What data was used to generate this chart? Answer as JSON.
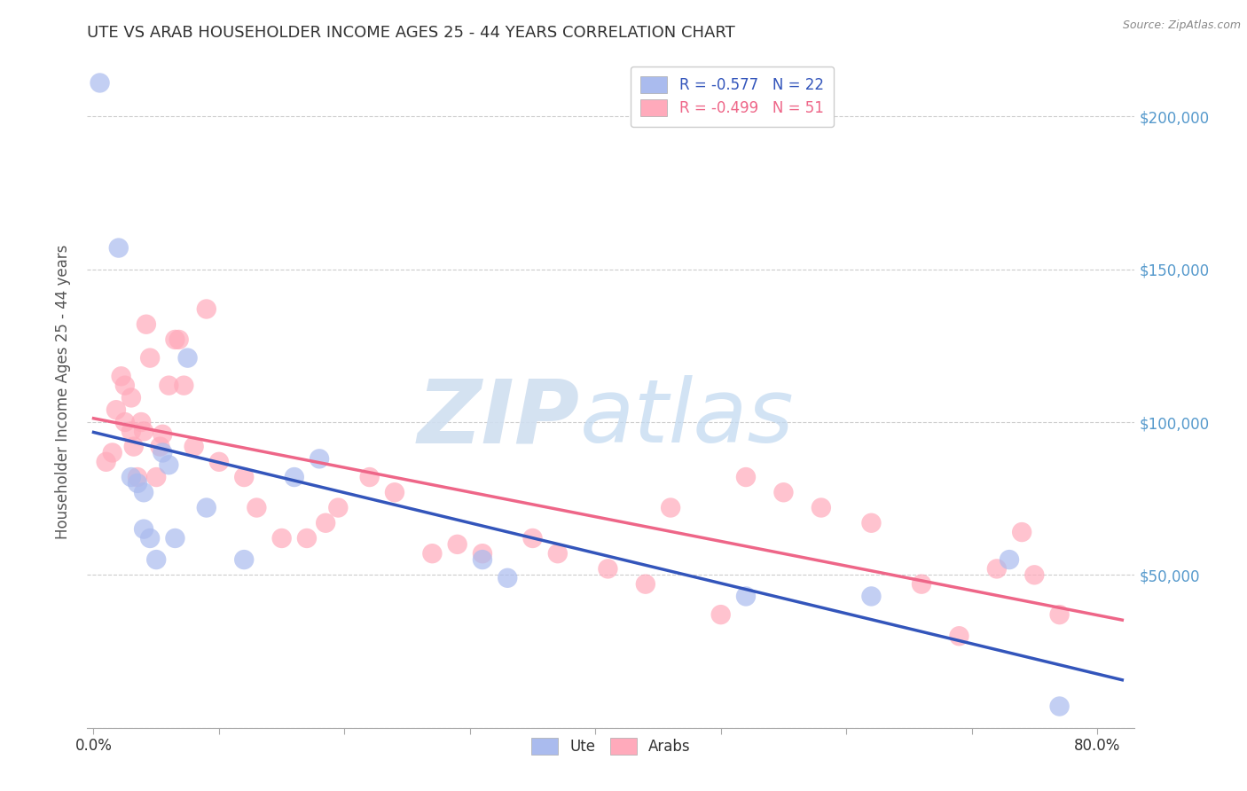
{
  "title": "UTE VS ARAB HOUSEHOLDER INCOME AGES 25 - 44 YEARS CORRELATION CHART",
  "source": "Source: ZipAtlas.com",
  "ylabel": "Householder Income Ages 25 - 44 years",
  "ylim": [
    0,
    220000
  ],
  "xlim": [
    -0.005,
    0.83
  ],
  "yticks": [
    0,
    50000,
    100000,
    150000,
    200000
  ],
  "ytick_labels": [
    "",
    "$50,000",
    "$100,000",
    "$150,000",
    "$200,000"
  ],
  "xtick_show": [
    0.0,
    0.8
  ],
  "xtick_show_labels": [
    "0.0%",
    "80.0%"
  ],
  "xtick_minor": [
    0.0,
    0.1,
    0.2,
    0.3,
    0.4,
    0.5,
    0.6,
    0.7,
    0.8
  ],
  "watermark_zip": "ZIP",
  "watermark_atlas": "atlas",
  "legend_blue_label": "R = -0.577   N = 22",
  "legend_pink_label": "R = -0.499   N = 51",
  "legend_ute": "Ute",
  "legend_arab": "Arabs",
  "ute_color": "#aabbee",
  "arab_color": "#ffaabb",
  "ute_line_color": "#3355bb",
  "arab_line_color": "#ee6688",
  "ute_points_x": [
    0.005,
    0.02,
    0.03,
    0.035,
    0.04,
    0.04,
    0.045,
    0.05,
    0.055,
    0.06,
    0.065,
    0.075,
    0.09,
    0.12,
    0.16,
    0.18,
    0.31,
    0.33,
    0.52,
    0.62,
    0.73,
    0.77
  ],
  "ute_points_y": [
    211000,
    157000,
    82000,
    80000,
    77000,
    65000,
    62000,
    55000,
    90000,
    86000,
    62000,
    121000,
    72000,
    55000,
    82000,
    88000,
    55000,
    49000,
    43000,
    43000,
    55000,
    7000
  ],
  "arab_points_x": [
    0.01,
    0.015,
    0.018,
    0.022,
    0.025,
    0.025,
    0.03,
    0.03,
    0.032,
    0.035,
    0.038,
    0.04,
    0.042,
    0.045,
    0.05,
    0.053,
    0.055,
    0.06,
    0.065,
    0.068,
    0.072,
    0.08,
    0.09,
    0.1,
    0.12,
    0.13,
    0.15,
    0.17,
    0.185,
    0.195,
    0.22,
    0.24,
    0.27,
    0.29,
    0.31,
    0.35,
    0.37,
    0.41,
    0.44,
    0.46,
    0.5,
    0.52,
    0.55,
    0.58,
    0.62,
    0.66,
    0.69,
    0.72,
    0.74,
    0.75,
    0.77
  ],
  "arab_points_y": [
    87000,
    90000,
    104000,
    115000,
    100000,
    112000,
    97000,
    108000,
    92000,
    82000,
    100000,
    97000,
    132000,
    121000,
    82000,
    92000,
    96000,
    112000,
    127000,
    127000,
    112000,
    92000,
    137000,
    87000,
    82000,
    72000,
    62000,
    62000,
    67000,
    72000,
    82000,
    77000,
    57000,
    60000,
    57000,
    62000,
    57000,
    52000,
    47000,
    72000,
    37000,
    82000,
    77000,
    72000,
    67000,
    47000,
    30000,
    52000,
    64000,
    50000,
    37000
  ],
  "background_color": "#ffffff",
  "grid_color": "#cccccc",
  "title_color": "#333333",
  "axis_label_color": "#555555",
  "tick_label_color_right": "#5599cc"
}
